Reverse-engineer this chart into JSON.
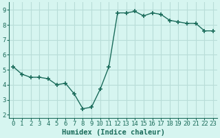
{
  "x": [
    0,
    1,
    2,
    3,
    4,
    5,
    6,
    7,
    8,
    9,
    10,
    11,
    12,
    13,
    14,
    15,
    16,
    17,
    18,
    19,
    20,
    21,
    22,
    23
  ],
  "y": [
    5.2,
    4.7,
    4.5,
    4.5,
    4.4,
    4.0,
    4.1,
    3.4,
    2.4,
    2.5,
    3.7,
    5.2,
    8.8,
    8.8,
    8.9,
    8.6,
    8.8,
    8.7,
    8.3,
    8.2,
    8.1,
    8.1,
    7.6,
    7.6
  ],
  "line_color": "#1a6b5a",
  "marker": "+",
  "marker_size": 4,
  "bg_color": "#d6f5f0",
  "grid_color": "#b8ddd8",
  "xlabel": "Humidex (Indice chaleur)",
  "xlim": [
    -0.5,
    23.5
  ],
  "ylim": [
    1.8,
    9.5
  ],
  "yticks": [
    2,
    3,
    4,
    5,
    6,
    7,
    8,
    9
  ],
  "xticks": [
    0,
    1,
    2,
    3,
    4,
    5,
    6,
    7,
    8,
    9,
    10,
    11,
    12,
    13,
    14,
    15,
    16,
    17,
    18,
    19,
    20,
    21,
    22,
    23
  ],
  "tick_color": "#1a6b5a",
  "label_fontsize": 6.5,
  "xlabel_fontsize": 7.5,
  "line_width": 1.0
}
